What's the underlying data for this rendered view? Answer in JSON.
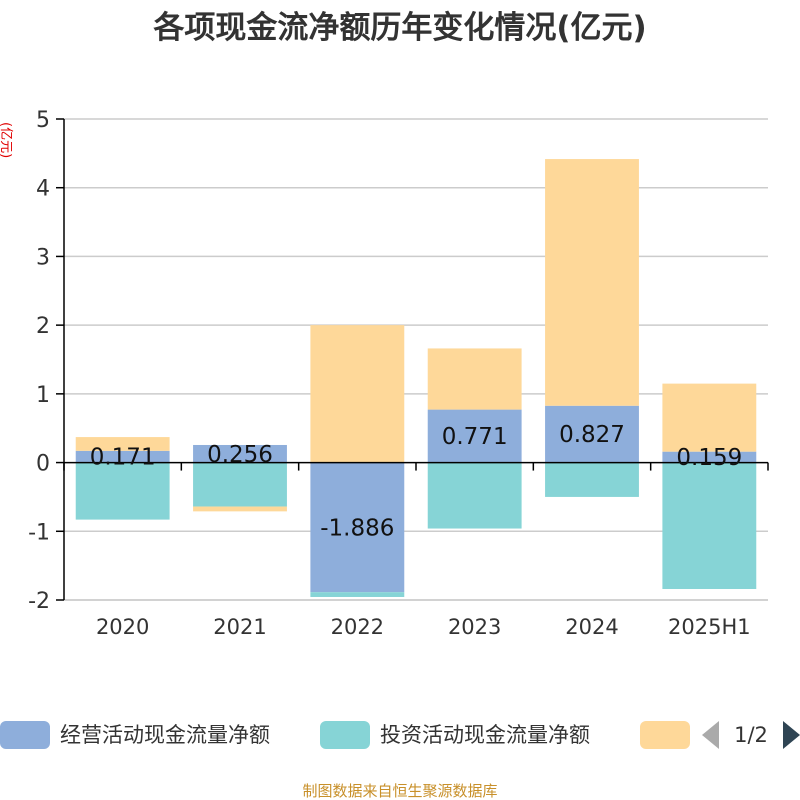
{
  "colors": {
    "operating": "#8eaedb",
    "investing": "#86d4d6",
    "financing": "#fed899",
    "axis": "#000000",
    "grid": "#cccccc",
    "pager_inactive": "#aaaaaa",
    "pager_active": "#2f4554"
  },
  "pager": {
    "text": "1/2",
    "prev_icon": "triangle-left-icon",
    "next_icon": "triangle-right-icon"
  },
  "source_text": "制图数据来自恒生聚源数据库",
  "chart_data": {
    "type": "bar",
    "stacked": true,
    "title": "各项现金流净额历年变化情况(亿元)",
    "ylabel": "(亿元)",
    "xlabel": "",
    "categories": [
      "2020",
      "2021",
      "2022",
      "2023",
      "2024",
      "2025H1"
    ],
    "ylim": [
      -2,
      5
    ],
    "yticks": [
      -2,
      -1,
      0,
      1,
      2,
      3,
      4,
      5
    ],
    "grid": true,
    "legend_position": "bottom",
    "series": [
      {
        "name": "经营活动现金流量净额",
        "color_key": "operating",
        "values": [
          0.171,
          0.256,
          -1.886,
          0.771,
          0.827,
          0.159
        ],
        "labels": [
          "0.171",
          "0.256",
          "-1.886",
          "0.771",
          "0.827",
          "0.159"
        ],
        "show_labels": true
      },
      {
        "name": "投资活动现金流量净额",
        "color_key": "investing",
        "values": [
          -0.83,
          -0.64,
          -0.07,
          -0.96,
          -0.5,
          -1.84
        ],
        "show_labels": false
      },
      {
        "name": "",
        "color_key": "financing",
        "values": [
          0.2,
          -0.07,
          2.0,
          0.89,
          3.59,
          0.99
        ],
        "show_labels": false
      }
    ]
  }
}
